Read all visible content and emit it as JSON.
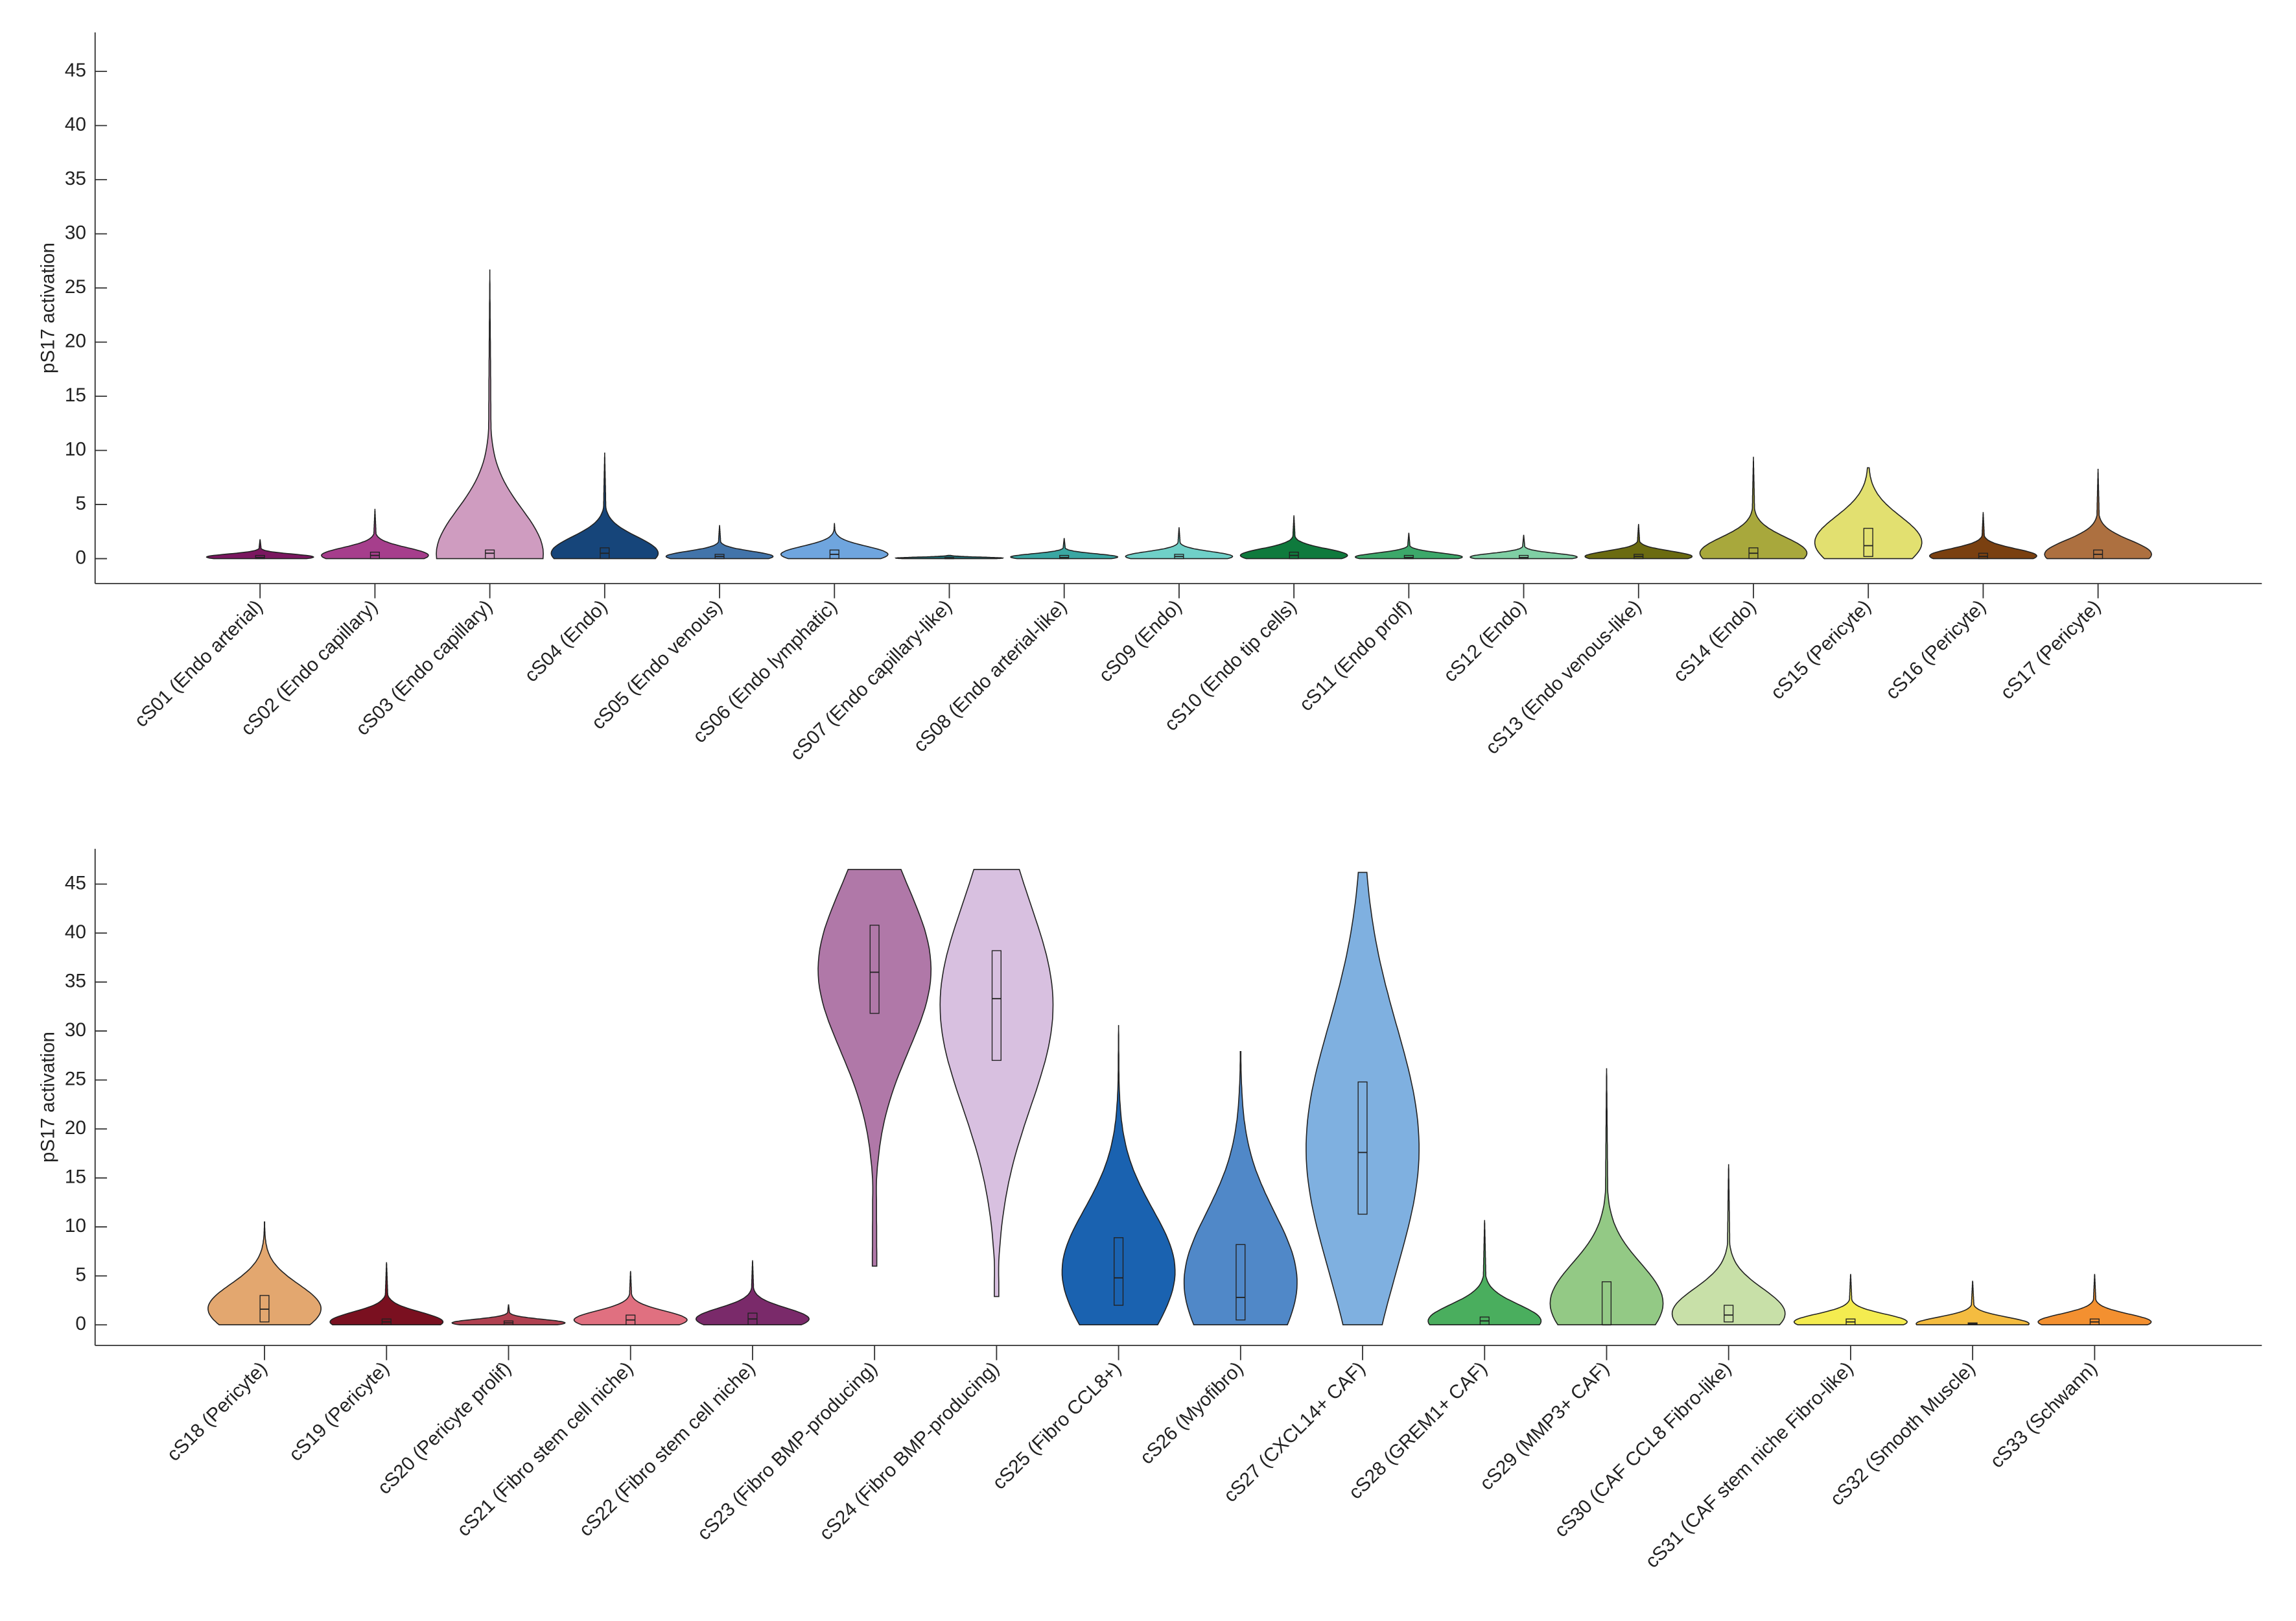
{
  "chart_data": [
    {
      "type": "violin",
      "ylabel": "pS17 activation",
      "categories": [
        "cS01 (Endo arterial)",
        "cS02 (Endo capillary)",
        "cS03 (Endo capillary)",
        "cS04 (Endo)",
        "cS05 (Endo venous)",
        "cS06 (Endo lymphatic)",
        "cS07 (Endo capillary-like)",
        "cS08 (Endo arterial-like)",
        "cS09 (Endo)",
        "cS10 (Endo tip cells)",
        "cS11 (Endo prolf)",
        "cS12 (Endo)",
        "cS13 (Endo venous-like)",
        "cS14 (Endo)",
        "cS15 (Pericyte)",
        "cS16 (Pericyte)",
        "cS17 (Pericyte)"
      ],
      "colors": [
        "#7b1760",
        "#a63e8c",
        "#cf9cc0",
        "#16457a",
        "#4274aa",
        "#6fa5de",
        "#1e6a70",
        "#3aa7a3",
        "#6fd0c8",
        "#0f7a3d",
        "#3ca86a",
        "#7fcfa4",
        "#6b6b10",
        "#a8a83c",
        "#e2e070",
        "#7a4010",
        "#ad7040"
      ],
      "min": [
        0,
        0,
        0,
        0,
        0,
        0,
        0,
        0,
        0,
        0,
        0,
        0,
        0,
        0,
        0,
        0,
        0
      ],
      "q1": [
        0,
        0,
        0,
        0,
        0,
        0,
        0,
        0,
        0,
        0,
        0,
        0,
        0,
        0,
        0.2,
        0,
        0
      ],
      "median": [
        0.1,
        0.3,
        0.5,
        0.5,
        0.2,
        0.4,
        0,
        0.1,
        0.2,
        0.3,
        0.1,
        0.1,
        0.2,
        0.5,
        1.2,
        0.2,
        0.4
      ],
      "q3": [
        0.3,
        0.6,
        0.8,
        1,
        0.4,
        0.8,
        0.1,
        0.3,
        0.4,
        0.6,
        0.3,
        0.3,
        0.4,
        1,
        2.8,
        0.5,
        0.8
      ],
      "max": [
        1.8,
        4.6,
        26.7,
        9.8,
        3.1,
        3.3,
        0.3,
        1.9,
        2.9,
        4,
        2.4,
        2.2,
        3.2,
        9.4,
        8.4,
        4.3,
        8.3
      ],
      "ylim": [
        -2.3,
        48.6
      ],
      "yticks": [
        0,
        5,
        10,
        15,
        20,
        25,
        30,
        35,
        40,
        45
      ]
    },
    {
      "type": "violin",
      "ylabel": "pS17 activation",
      "categories": [
        "cS18 (Pericyte)",
        "cS19 (Pericyte)",
        "cS20 (Pericyte prolif)",
        "cS21 (Fibro stem cell niche)",
        "cS22 (Fibro stem cell niche)",
        "cS23 (Fibro BMP-producing)",
        "cS24 (Fibro BMP-producing)",
        "cS25 (Fibro CCL8+)",
        "cS26 (Myofibro)",
        "cS27 (CXCL14+ CAF)",
        "cS28 (GREM1+ CAF)",
        "cS29 (MMP3+ CAF)",
        "cS30 (CAF CCL8 Fibro-like)",
        "cS31 (CAF stem niche Fibro-like)",
        "cS32 (Smooth Muscle)",
        "cS33 (Schwann)"
      ],
      "colors": [
        "#e3a76f",
        "#7a1020",
        "#b04050",
        "#e07080",
        "#7a2a6a",
        "#b078a8",
        "#d8c0e0",
        "#1a62b0",
        "#5088c8",
        "#7fb0e0",
        "#4aae5e",
        "#93c985",
        "#c8e0a8",
        "#f4ec50",
        "#f4bc40",
        "#f39030"
      ],
      "min": [
        0,
        0,
        0,
        0,
        0,
        6,
        2.9,
        0,
        0,
        0,
        0,
        0,
        0,
        0,
        0,
        0
      ],
      "q1": [
        0.3,
        0,
        0,
        0,
        0,
        31.8,
        27,
        2,
        0.5,
        11.3,
        0,
        0,
        0.3,
        0,
        0,
        0
      ],
      "median": [
        1.6,
        0.3,
        0.2,
        0.5,
        0.6,
        36,
        33.3,
        4.8,
        2.8,
        17.6,
        0.4,
        0,
        1,
        0.3,
        0.1,
        0.3
      ],
      "q3": [
        3,
        0.6,
        0.4,
        1,
        1.2,
        40.8,
        38.2,
        8.9,
        8.2,
        24.8,
        0.8,
        4.4,
        2,
        0.6,
        0.2,
        0.6
      ],
      "max": [
        10.5,
        6.4,
        2.1,
        5.5,
        6.6,
        46.5,
        46.5,
        30.6,
        27.9,
        46.2,
        10.7,
        26.2,
        16.4,
        5.2,
        4.5,
        5.2
      ],
      "ylim": [
        -2.1,
        48.6
      ],
      "yticks": [
        0,
        5,
        10,
        15,
        20,
        25,
        30,
        35,
        40,
        45
      ]
    }
  ]
}
